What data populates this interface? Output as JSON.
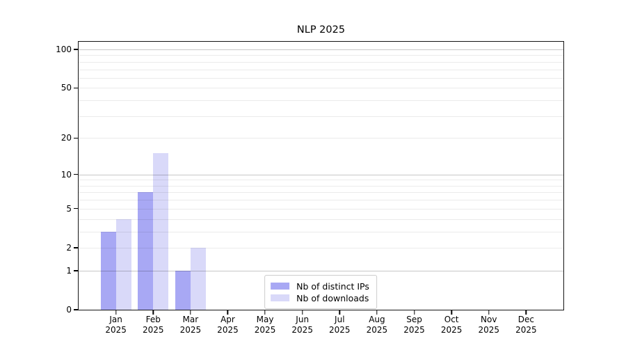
{
  "chart_data": {
    "type": "bar",
    "title": "NLP 2025",
    "categories": [
      "Jan 2025",
      "Feb 2025",
      "Mar 2025",
      "Apr 2025",
      "May 2025",
      "Jun 2025",
      "Jul 2025",
      "Aug 2025",
      "Sep 2025",
      "Oct 2025",
      "Nov 2025",
      "Dec 2025"
    ],
    "series": [
      {
        "name": "Nb of distinct IPs",
        "color": "#a8a8f4",
        "values": [
          3,
          7,
          1,
          0,
          0,
          0,
          0,
          0,
          0,
          0,
          0,
          0
        ]
      },
      {
        "name": "Nb of downloads",
        "color": "#d9d9f9",
        "values": [
          4,
          15,
          2,
          0,
          0,
          0,
          0,
          0,
          0,
          0,
          0,
          0
        ]
      }
    ],
    "yscale": "log(y+1)",
    "yticks": [
      0,
      1,
      2,
      5,
      10,
      20,
      50,
      100
    ],
    "gridlines": {
      "major": [
        1,
        10,
        100
      ],
      "minor": [
        2,
        3,
        4,
        5,
        6,
        7,
        8,
        9,
        20,
        30,
        40,
        50,
        60,
        70,
        80,
        90
      ]
    },
    "ylim": [
      0,
      115
    ],
    "xlabel": "",
    "ylabel": "",
    "grid": true,
    "legend_position": "bottom-center",
    "colors": {
      "major_grid": "#c7c7c7",
      "minor_grid": "#ececec",
      "axis": "#141414",
      "background": "#ffffff"
    }
  }
}
